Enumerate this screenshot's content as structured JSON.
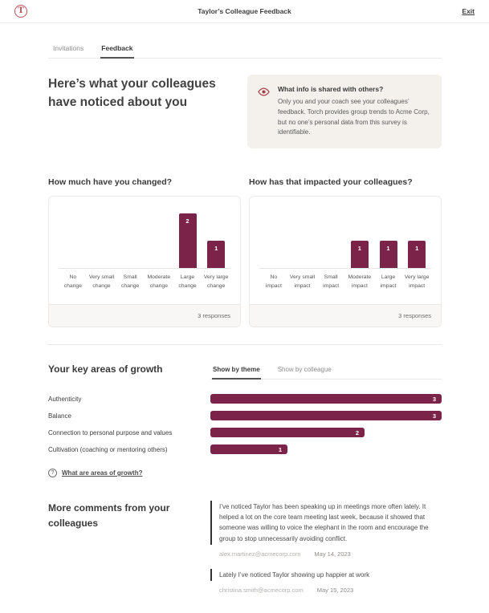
{
  "header": {
    "logo_letter": "T",
    "title": "Taylor’s Colleague Feedback",
    "exit_label": "Exit"
  },
  "tabs": [
    {
      "label": "Invitations",
      "active": false
    },
    {
      "label": "Feedback",
      "active": true
    }
  ],
  "hero": {
    "heading": "Here’s what your colleagues have noticed about you",
    "info_box": {
      "icon": "eye-icon",
      "title": "What info is shared with others?",
      "body": "Only you and your coach see your colleagues’ feedback. Torch provides group trends to Acme Corp, but no one’s personal data from this survey is identifiable."
    }
  },
  "chart_data": [
    {
      "type": "bar",
      "title": "How much have you changed?",
      "categories": [
        "No change",
        "Very small change",
        "Small change",
        "Moderate change",
        "Large change",
        "Very large change"
      ],
      "values": [
        0,
        0,
        0,
        0,
        2,
        1
      ],
      "ylim": [
        0,
        2
      ],
      "footer": "3 responses",
      "bar_color": "#7c2349",
      "grid": false,
      "value_labels": "inside-top"
    },
    {
      "type": "bar",
      "title": "How has that impacted your colleagues?",
      "categories": [
        "No impact",
        "Very small impact",
        "Small impact",
        "Moderate impact",
        "Large impact",
        "Very large impact"
      ],
      "values": [
        0,
        0,
        0,
        1,
        1,
        1
      ],
      "ylim": [
        0,
        2
      ],
      "footer": "3 responses",
      "bar_color": "#7c2349",
      "grid": false,
      "value_labels": "inside-top"
    },
    {
      "type": "bar",
      "orientation": "horizontal",
      "title": "Your key areas of growth",
      "categories": [
        "Authenticity",
        "Balance",
        "Connection to personal purpose and values",
        "Cultivation (coaching or mentoring others)"
      ],
      "values": [
        3,
        3,
        2,
        1
      ],
      "xlim": [
        0,
        3
      ],
      "bar_color": "#7c2349",
      "value_labels": "inside-end"
    }
  ],
  "growth": {
    "heading": "Your key areas of growth",
    "tabs": [
      {
        "label": "Show by theme",
        "active": true
      },
      {
        "label": "Show by colleague",
        "active": false
      }
    ],
    "help_link": "What are areas of growth?",
    "help_icon": "question-circle-icon"
  },
  "comments": {
    "heading": "More comments from your colleagues",
    "items": [
      {
        "text": "I’ve noticed Taylor has been speaking up in meetings more often lately. It helped a lot on the core team meeting last week, because it showed that someone was willing to voice the elephant in the room and encourage the group to stop unnecessarily avoiding conflict.",
        "author": "alex.martinez@acmecorp.com",
        "date": "May 14, 2023"
      },
      {
        "text": "Lately I’ve noticed Taylor showing up happier at work",
        "author": "christina.smith@acmecorp.com",
        "date": "May 15, 2023"
      }
    ]
  },
  "colors": {
    "accent_bar": "#7c2349",
    "logo_red": "#c0545c",
    "eye_icon_red": "#a63c49",
    "info_box_bg": "#f4f1ec"
  }
}
